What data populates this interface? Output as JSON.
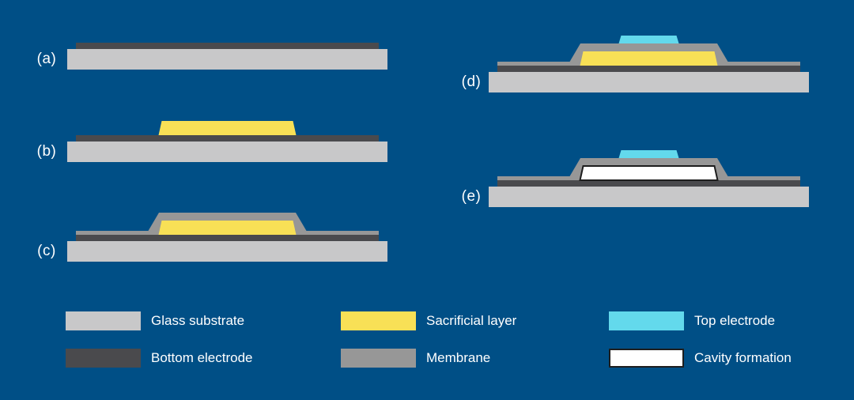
{
  "figure": {
    "background_color": "#004F86",
    "text_color": "#FFFFFF"
  },
  "colors": {
    "glass_substrate": "#C8C8C9",
    "bottom_electrode": "#4A4A4D",
    "sacrificial_layer": "#F8E056",
    "membrane": "#979797",
    "top_electrode": "#63D9EC",
    "cavity_formation": "#FFFFFF",
    "cavity_border": "#1E1E1E"
  },
  "steps": [
    {
      "label": "(a)",
      "layers": [
        "glass_substrate",
        "bottom_electrode"
      ]
    },
    {
      "label": "(b)",
      "layers": [
        "glass_substrate",
        "bottom_electrode",
        "sacrificial_layer"
      ]
    },
    {
      "label": "(c)",
      "layers": [
        "glass_substrate",
        "bottom_electrode",
        "membrane",
        "sacrificial_layer"
      ]
    },
    {
      "label": "(d)",
      "layers": [
        "glass_substrate",
        "bottom_electrode",
        "membrane",
        "sacrificial_layer",
        "top_electrode"
      ]
    },
    {
      "label": "(e)",
      "layers": [
        "glass_substrate",
        "bottom_electrode",
        "membrane",
        "cavity_formation",
        "top_electrode"
      ]
    }
  ],
  "legend": [
    {
      "key": "glass_substrate",
      "label": "Glass substrate"
    },
    {
      "key": "bottom_electrode",
      "label": "Bottom electrode"
    },
    {
      "key": "sacrificial_layer",
      "label": "Sacrificial layer"
    },
    {
      "key": "membrane",
      "label": "Membrane"
    },
    {
      "key": "top_electrode",
      "label": "Top electrode"
    },
    {
      "key": "cavity_formation",
      "label": "Cavity formation"
    }
  ]
}
